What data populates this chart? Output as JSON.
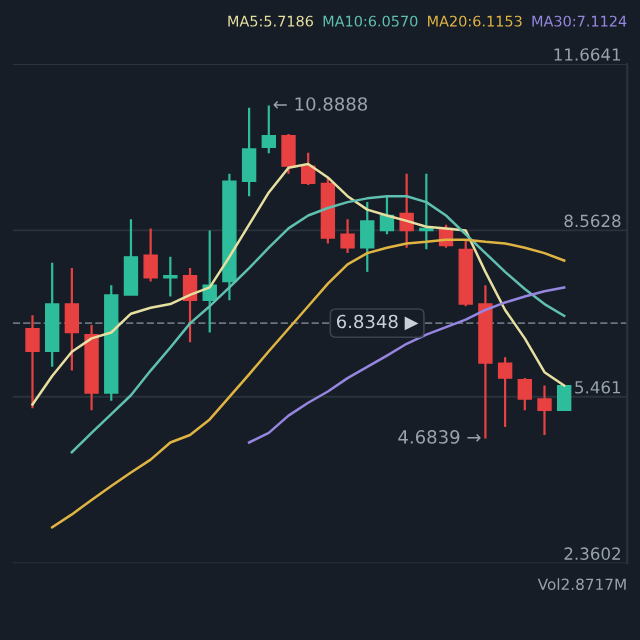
{
  "chart_data": {
    "type": "candlestick",
    "categories": [
      null,
      null,
      null,
      null,
      null,
      null,
      null,
      null,
      null,
      null,
      null,
      null,
      null,
      null,
      null,
      null,
      null,
      null,
      null,
      null,
      null,
      null,
      null,
      null,
      null,
      null,
      null,
      null
    ],
    "ohlc": [
      [
        6.73,
        6.98,
        5.25,
        6.31
      ],
      [
        6.31,
        7.96,
        6.02,
        7.19
      ],
      [
        7.19,
        7.86,
        5.95,
        6.66
      ],
      [
        6.62,
        6.8,
        5.21,
        5.53
      ],
      [
        5.53,
        7.54,
        5.39,
        7.36
      ],
      [
        7.36,
        8.77,
        7.36,
        8.07
      ],
      [
        8.1,
        8.6,
        7.61,
        7.68
      ],
      [
        7.68,
        8.07,
        7.33,
        7.72
      ],
      [
        7.72,
        7.86,
        6.48,
        7.26
      ],
      [
        7.26,
        8.56,
        6.66,
        7.54
      ],
      [
        7.61,
        9.62,
        7.26,
        9.48
      ],
      [
        9.48,
        10.85,
        9.2,
        10.08
      ],
      [
        10.11,
        10.8888,
        10.0,
        10.33
      ],
      [
        10.33,
        10.36,
        9.62,
        9.76
      ],
      [
        9.76,
        10.01,
        9.41,
        9.44
      ],
      [
        9.44,
        9.55,
        8.32,
        8.42
      ],
      [
        8.49,
        8.77,
        8.14,
        8.24
      ],
      [
        8.24,
        9.09,
        7.79,
        8.74
      ],
      [
        8.56,
        9.2,
        8.49,
        8.84
      ],
      [
        8.88,
        9.62,
        8.24,
        8.56
      ],
      [
        8.56,
        9.62,
        8.21,
        8.6
      ],
      [
        8.6,
        8.67,
        8.24,
        8.28
      ],
      [
        8.21,
        8.39,
        7.15,
        7.19
      ],
      [
        7.19,
        7.54,
        4.6839,
        6.09
      ],
      [
        6.09,
        6.2,
        4.9,
        5.81
      ],
      [
        5.78,
        5.81,
        5.21,
        5.42
      ],
      [
        5.42,
        5.67,
        4.75,
        5.21
      ],
      [
        5.21,
        5.67,
        5.21,
        5.67
      ]
    ],
    "colors": [
      "#e84142",
      "#2ebd9c",
      "#e84142",
      "#e84142",
      "#2ebd9c",
      "#2ebd9c",
      "#e84142",
      "#2ebd9c",
      "#e84142",
      "#2ebd9c",
      "#2ebd9c",
      "#2ebd9c",
      "#2ebd9c",
      "#e84142",
      "#e84142",
      "#e84142",
      "#e84142",
      "#2ebd9c",
      "#2ebd9c",
      "#e84142",
      "#2ebd9c",
      "#e84142",
      "#e84142",
      "#e84142",
      "#e84142",
      "#e84142",
      "#e84142",
      "#2ebd9c"
    ],
    "series": [
      {
        "type": "line",
        "name": "MA5:5.7186",
        "color": "#e6dfa0",
        "values": [
          5.32,
          5.85,
          6.3,
          6.55,
          6.66,
          7.01,
          7.12,
          7.19,
          7.36,
          7.5,
          8.07,
          8.67,
          9.27,
          9.73,
          9.8,
          9.55,
          9.2,
          8.95,
          8.84,
          8.74,
          8.63,
          8.6,
          8.56,
          7.79,
          7.08,
          6.55,
          5.92,
          5.67
        ]
      },
      {
        "type": "line",
        "name": "MA10:6.0570",
        "color": "#5fbfb0",
        "values": [
          null,
          null,
          4.43,
          4.79,
          5.14,
          5.49,
          5.95,
          6.38,
          6.83,
          7.15,
          7.5,
          7.86,
          8.24,
          8.6,
          8.84,
          8.98,
          9.09,
          9.16,
          9.2,
          9.2,
          9.09,
          8.84,
          8.49,
          8.14,
          7.79,
          7.47,
          7.19,
          6.97
        ]
      },
      {
        "type": "line",
        "name": "MA20:6.1153",
        "color": "#e0b443",
        "values": [
          null,
          3.03,
          3.27,
          3.54,
          3.8,
          4.05,
          4.29,
          4.61,
          4.75,
          5.04,
          5.46,
          5.88,
          6.31,
          6.73,
          7.15,
          7.57,
          7.93,
          8.14,
          8.24,
          8.32,
          8.35,
          8.39,
          8.39,
          8.35,
          8.32,
          8.24,
          8.14,
          8.0
        ]
      },
      {
        "type": "line",
        "name": "MA30:7.1124",
        "color": "#9686e0",
        "values": [
          null,
          null,
          null,
          null,
          null,
          null,
          null,
          null,
          null,
          null,
          null,
          4.61,
          4.79,
          5.11,
          5.35,
          5.56,
          5.81,
          6.02,
          6.23,
          6.45,
          6.62,
          6.76,
          6.9,
          7.08,
          7.22,
          7.33,
          7.43,
          7.5
        ]
      }
    ],
    "ylim": [
      2.3602,
      11.6641
    ],
    "yticks": [
      2.3602,
      5.461,
      8.5628,
      11.6641
    ],
    "tick_labels": "y",
    "grid": "y",
    "ref_lines": [
      {
        "axis": "y",
        "value": 6.8348,
        "label": "6.8348 ▶",
        "line_style": "dashed",
        "color": "#6b7380"
      }
    ],
    "annotations": [
      "← 10.8888",
      "4.6839 →",
      "Vol2.8717M"
    ]
  }
}
